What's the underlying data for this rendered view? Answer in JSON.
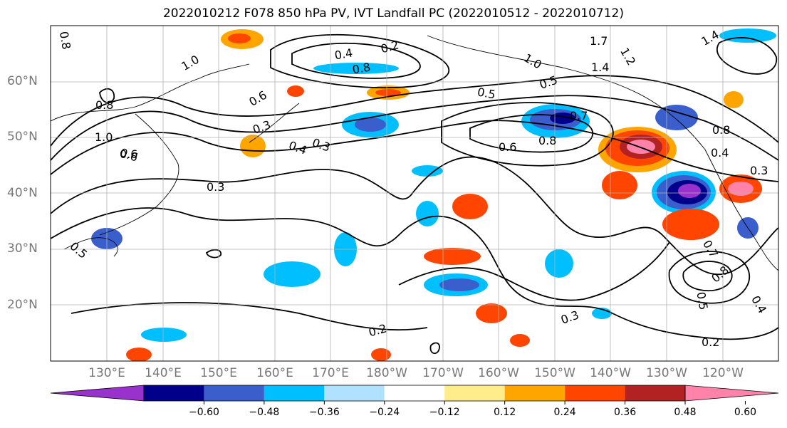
{
  "title": "2022010212 F078 850 hPa PV, IVT Landfall PC (2022010512 - 2022010712)",
  "lat_labels": [
    "60°N",
    "50°N",
    "40°N",
    "30°N",
    "20°N"
  ],
  "lon_labels": [
    "130°E",
    "140°E",
    "150°E",
    "160°E",
    "170°E",
    "180°W",
    "170°W",
    "160°W",
    "150°W",
    "140°W",
    "130°W",
    "120°W"
  ],
  "contour_labels": [
    "0.8",
    "0.4",
    "0.2",
    "1.0",
    "1.7",
    "1.4",
    "1.2",
    "1.4",
    "0.8",
    "1.0",
    "0.6",
    "0.3",
    "0.4",
    "0.3",
    "0.5",
    "0.7",
    "0.6",
    "0.8",
    "0.5",
    "0.4",
    "0.3",
    "0.3",
    "0.5",
    "0.6",
    "0.7",
    "0.8",
    "0.5",
    "0.4",
    "0.2",
    "0.3",
    "0.2",
    "0.8",
    "0.6",
    "1.0",
    "0.8"
  ],
  "colorbar": {
    "ticks": [
      "−0.60",
      "−0.48",
      "−0.36",
      "−0.24",
      "−0.12",
      "0.12",
      "0.24",
      "0.36",
      "0.48",
      "0.60"
    ],
    "colors": [
      "#9932cc",
      "#00008b",
      "#3a5fcd",
      "#00bfff",
      "#b0e2ff",
      "#ffffff",
      "#ffec8b",
      "#ffa500",
      "#ff4500",
      "#b22222",
      "#ff82ab"
    ]
  }
}
